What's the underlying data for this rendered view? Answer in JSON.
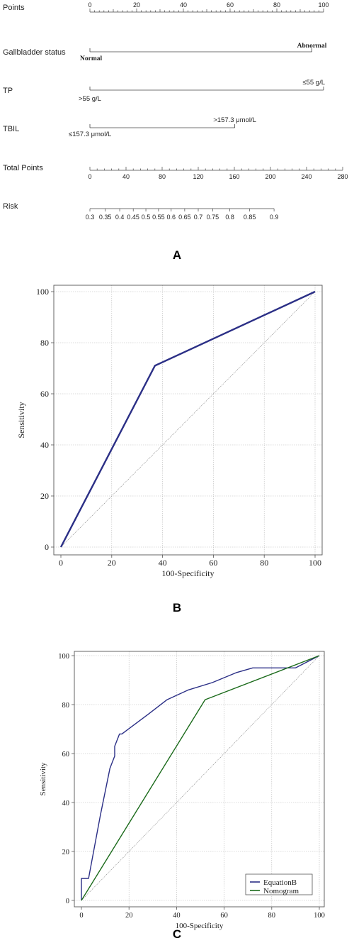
{
  "panel_labels": [
    "A",
    "B",
    "C"
  ],
  "chart_data": [
    {
      "type": "nomogram",
      "rows": [
        {
          "label": "Points",
          "min": 0,
          "max": 100,
          "major_ticks": [
            0,
            20,
            40,
            60,
            80,
            100
          ],
          "minor_step": 2
        },
        {
          "label": "Gallbladder status",
          "levels": [
            {
              "text": "Normal",
              "points": 0
            },
            {
              "text": "Abnormal",
              "points": 95
            }
          ]
        },
        {
          "label": "TP",
          "levels": [
            {
              "text": ">55 g/L",
              "points": 0
            },
            {
              "text": "≤55 g/L",
              "points": 100
            }
          ]
        },
        {
          "label": "TBIL",
          "levels": [
            {
              "text": "≤157.3 μmol/L",
              "points": 0
            },
            {
              "text": ">157.3 μmol/L",
              "points": 62
            }
          ]
        },
        {
          "label": "Total Points",
          "min": 0,
          "max": 280,
          "major_ticks": [
            0,
            40,
            80,
            120,
            160,
            200,
            240,
            280
          ],
          "minor_step": 8
        },
        {
          "label": "Risk",
          "ticks": [
            {
              "value": "0.3",
              "tp": 0
            },
            {
              "value": "0.35",
              "tp": 17
            },
            {
              "value": "0.4",
              "tp": 33
            },
            {
              "value": "0.45",
              "tp": 48
            },
            {
              "value": "0.5",
              "tp": 62
            },
            {
              "value": "0.55",
              "tp": 76
            },
            {
              "value": "0.6",
              "tp": 90
            },
            {
              "value": "0.65",
              "tp": 105
            },
            {
              "value": "0.7",
              "tp": 120
            },
            {
              "value": "0.75",
              "tp": 136
            },
            {
              "value": "0.8",
              "tp": 155
            },
            {
              "value": "0.85",
              "tp": 177
            },
            {
              "value": "0.9",
              "tp": 204
            }
          ]
        }
      ]
    },
    {
      "type": "line",
      "xlabel": "100-Specificity",
      "ylabel": "Sensitivity",
      "xlim": [
        0,
        100
      ],
      "ylim": [
        0,
        100
      ],
      "xticks": [
        0,
        20,
        40,
        60,
        80,
        100
      ],
      "yticks": [
        0,
        20,
        40,
        60,
        80,
        100
      ],
      "grid": true,
      "colors": {
        "roc": "#2b2f86",
        "diagonal": "#8a8a8a"
      },
      "series": [
        {
          "x": [
            0,
            37,
            100
          ],
          "y": [
            0,
            71,
            100
          ]
        }
      ]
    },
    {
      "type": "line",
      "xlabel": "100-Specificity",
      "ylabel": "Sensitivity",
      "xlim": [
        0,
        100
      ],
      "ylim": [
        0,
        100
      ],
      "xticks": [
        0,
        20,
        40,
        60,
        80,
        100
      ],
      "yticks": [
        0,
        20,
        40,
        60,
        80,
        100
      ],
      "grid": true,
      "legend_position": "bottom-right",
      "series": [
        {
          "name": "EquationB",
          "color": "#2b2f86",
          "x": [
            0,
            0,
            3,
            8,
            12,
            14,
            14,
            16,
            17,
            28,
            36,
            45,
            55,
            65,
            72,
            80,
            90,
            100
          ],
          "y": [
            0,
            9,
            9,
            35,
            54,
            59,
            63,
            68,
            68,
            76,
            82,
            86,
            89,
            93,
            95,
            95,
            95,
            100
          ]
        },
        {
          "name": "Nomogram",
          "color": "#1a6a1a",
          "x": [
            0,
            52,
            100
          ],
          "y": [
            0,
            82,
            100
          ]
        }
      ]
    }
  ]
}
